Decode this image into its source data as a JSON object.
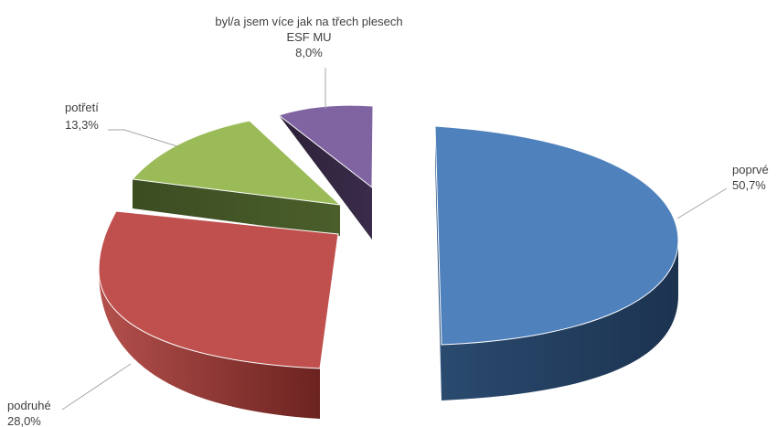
{
  "chart_data": {
    "type": "pie",
    "style": "3d-exploded",
    "legend": "none",
    "slices": [
      {
        "label": "poprvé",
        "value": 50.7,
        "display": "50,7%",
        "color": "#4F81BD"
      },
      {
        "label": "podruhé",
        "value": 28.0,
        "display": "28,0%",
        "color": "#C0504D"
      },
      {
        "label": "potřetí",
        "value": 13.3,
        "display": "13,3%",
        "color": "#9BBB59"
      },
      {
        "label_lines": [
          "byl/a jsem více jak na třech plesech",
          "ESF MU"
        ],
        "value": 8.0,
        "display": "8,0%",
        "color": "#8064A2"
      }
    ]
  }
}
